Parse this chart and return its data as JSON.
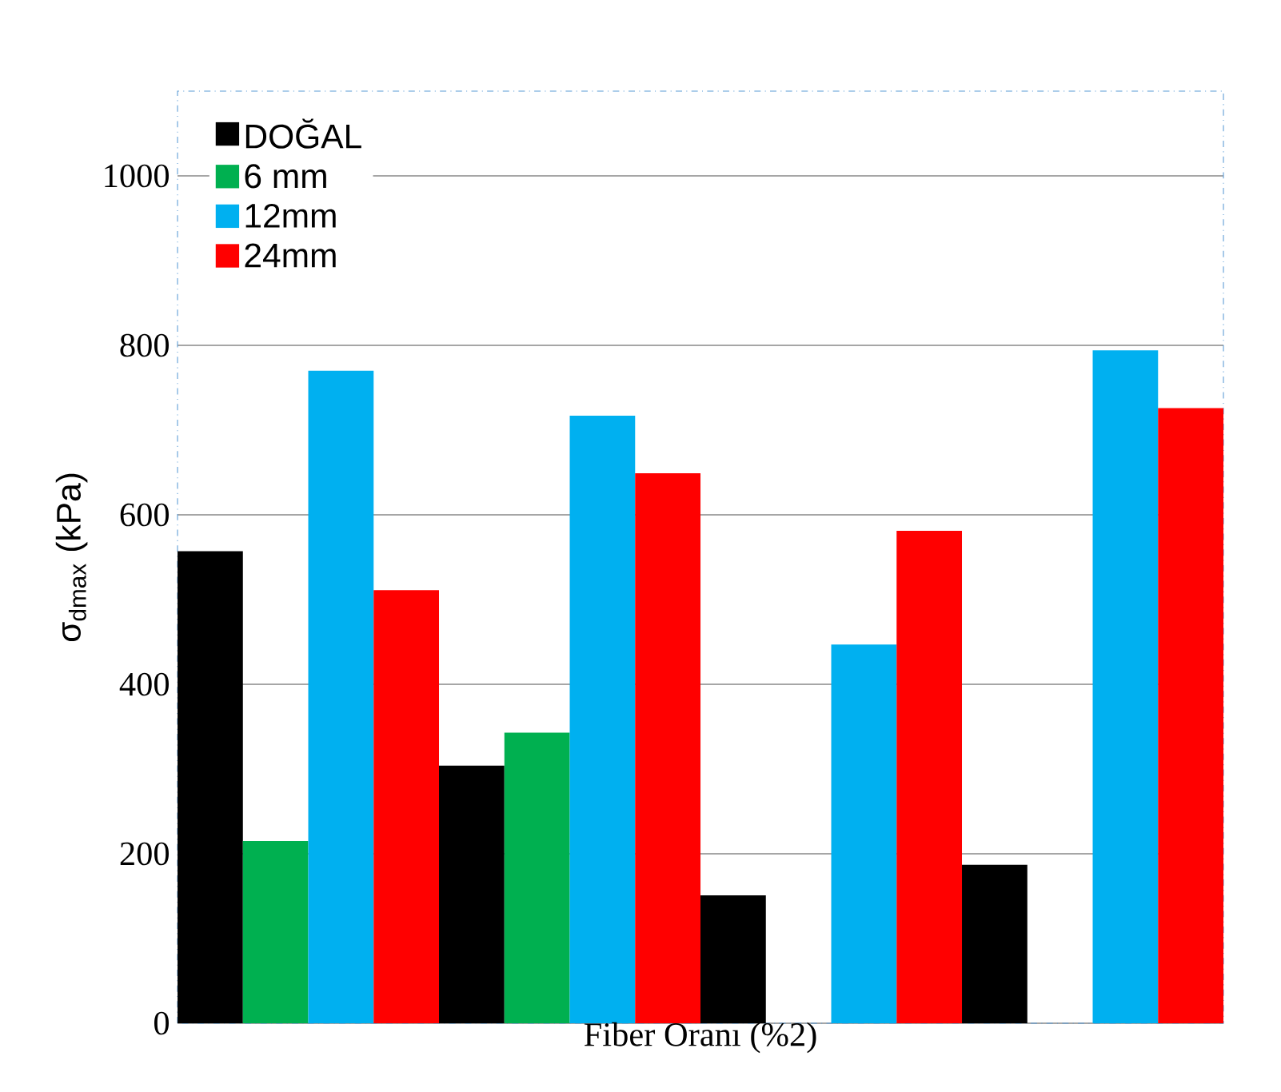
{
  "chart_data": {
    "type": "bar",
    "xlabel": "Fiber Oranı (%2)",
    "ylabel": "σ$_{dmax}$ (kPa)",
    "categories": [
      null,
      null,
      null,
      null
    ],
    "series": [
      {
        "name": "DOĞAL",
        "color": "#000000",
        "values": [
          557,
          304,
          151,
          187
        ]
      },
      {
        "name": "6 mm",
        "color": "#00b050",
        "values": [
          215,
          343,
          null,
          null
        ]
      },
      {
        "name": "12mm",
        "color": "#00b0f0",
        "values": [
          770,
          717,
          447,
          794
        ]
      },
      {
        "name": "24mm",
        "color": "#ff0000",
        "values": [
          511,
          649,
          581,
          726
        ]
      }
    ],
    "ylim": [
      0,
      1100
    ],
    "yticks": [
      0,
      200,
      400,
      600,
      800,
      1000
    ],
    "grid": "y",
    "legend": "top left"
  }
}
